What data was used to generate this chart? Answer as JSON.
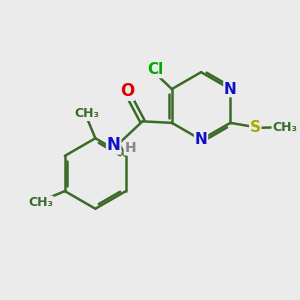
{
  "bg_color": "#ebebeb",
  "bond_color": "#3a6b28",
  "bond_width": 1.8,
  "atom_colors": {
    "Cl": "#00aa00",
    "N": "#1010cc",
    "O": "#dd0000",
    "S": "#aaaa00",
    "C": "#3a6b28",
    "H": "#888888"
  },
  "fig_size": [
    3.0,
    3.0
  ],
  "dpi": 100,
  "xlim": [
    0,
    10
  ],
  "ylim": [
    0,
    10
  ]
}
